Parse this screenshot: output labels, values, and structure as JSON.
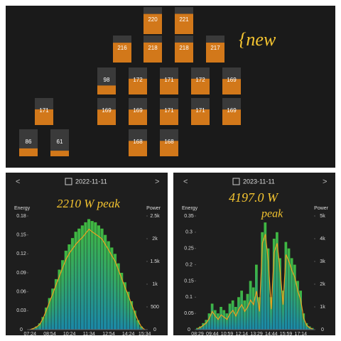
{
  "panel_rows": [
    [
      220,
      221
    ],
    [
      216,
      218,
      218,
      217
    ],
    [
      98,
      172,
      171,
      172,
      169
    ],
    [
      171,
      169,
      169,
      171,
      171,
      169
    ],
    [
      86,
      61,
      168,
      168
    ]
  ],
  "annotations": {
    "new": "{new",
    "peak_2022": "2210 W peak",
    "peak_2023_value": "4197.0 W",
    "peak_2023_word": "peak"
  },
  "chart_data": [
    {
      "type": "bar",
      "date": "2022-11-11",
      "prev": "<",
      "next": ">",
      "y_label": "Energy",
      "y2_label": "Power",
      "categories": [
        "07:24",
        null,
        null,
        null,
        null,
        null,
        "08:54",
        null,
        null,
        null,
        null,
        null,
        "10:24",
        null,
        null,
        null,
        null,
        null,
        "11:34",
        null,
        null,
        null,
        null,
        null,
        "12:54",
        null,
        null,
        null,
        null,
        null,
        "14:24",
        null,
        null,
        null,
        null,
        "15:34"
      ],
      "series": [
        {
          "name": "Energy",
          "color": "#3cb043",
          "values": [
            0,
            0.002,
            0.005,
            0.01,
            0.02,
            0.035,
            0.05,
            0.065,
            0.08,
            0.095,
            0.11,
            0.125,
            0.135,
            0.145,
            0.155,
            0.16,
            0.165,
            0.17,
            0.175,
            0.172,
            0.17,
            0.165,
            0.16,
            0.15,
            0.14,
            0.13,
            0.12,
            0.105,
            0.09,
            0.075,
            0.06,
            0.045,
            0.03,
            0.015,
            0.005,
            0
          ]
        },
        {
          "name": "Power",
          "color": "#f0a020",
          "axis": "y2",
          "values": [
            0,
            25,
            60,
            120,
            250,
            430,
            620,
            800,
            1000,
            1180,
            1370,
            1550,
            1680,
            1780,
            1880,
            1960,
            2030,
            2120,
            2210,
            2150,
            2100,
            2050,
            1990,
            1870,
            1750,
            1620,
            1500,
            1310,
            1120,
            930,
            750,
            560,
            370,
            190,
            60,
            0
          ]
        }
      ],
      "ylim": [
        0,
        0.18
      ],
      "yticks": [
        0,
        0.03,
        0.06,
        0.09,
        0.12,
        0.15,
        0.18
      ],
      "y2lim": [
        0,
        2500
      ],
      "y2ticks": [
        0,
        500,
        {
          "value": 1000,
          "label": "1k"
        },
        {
          "value": 1500,
          "label": "1.5k"
        },
        {
          "value": 2000,
          "label": "2k"
        },
        {
          "value": 2500,
          "label": "2.5k"
        }
      ]
    },
    {
      "type": "bar",
      "date": "2023-11-11",
      "prev": "<",
      "next": ">",
      "y_label": "Energy",
      "y2_label": "Power",
      "categories": [
        "08:29",
        null,
        null,
        null,
        null,
        "09:44",
        null,
        null,
        null,
        null,
        "10:59",
        null,
        null,
        null,
        null,
        "12:14",
        null,
        null,
        null,
        null,
        "13:29",
        null,
        null,
        null,
        null,
        "14:44",
        null,
        null,
        null,
        null,
        "15:59",
        null,
        null,
        null,
        null,
        "17:14",
        null,
        null,
        null,
        null
      ],
      "series": [
        {
          "name": "Energy",
          "color": "#3cb043",
          "values": [
            0.005,
            0.01,
            0.02,
            0.03,
            0.05,
            0.08,
            0.06,
            0.05,
            0.07,
            0.06,
            0.05,
            0.08,
            0.09,
            0.07,
            0.1,
            0.12,
            0.09,
            0.11,
            0.15,
            0.13,
            0.2,
            0.1,
            0.3,
            0.33,
            0.25,
            0.1,
            0.28,
            0.3,
            0.22,
            0.12,
            0.27,
            0.25,
            0.22,
            0.2,
            0.15,
            0.12,
            0.05,
            0.02,
            0.01,
            0.005
          ]
        },
        {
          "name": "Power",
          "color": "#f0a020",
          "axis": "y2",
          "values": [
            50,
            100,
            200,
            300,
            500,
            800,
            600,
            450,
            650,
            550,
            450,
            700,
            850,
            600,
            900,
            1100,
            800,
            1000,
            1300,
            1100,
            1700,
            800,
            3800,
            4197,
            3000,
            900,
            3400,
            3800,
            2600,
            1100,
            3300,
            3000,
            2600,
            2300,
            1700,
            1300,
            500,
            200,
            80,
            30
          ]
        }
      ],
      "ylim": [
        0,
        0.35
      ],
      "yticks": [
        0,
        0.05,
        0.1,
        0.15,
        0.2,
        0.25,
        0.3,
        0.35
      ],
      "y2lim": [
        0,
        5000
      ],
      "y2ticks": [
        0,
        {
          "value": 1000,
          "label": "1k"
        },
        {
          "value": 2000,
          "label": "2k"
        },
        {
          "value": 3000,
          "label": "3k"
        },
        {
          "value": 4000,
          "label": "4k"
        },
        {
          "value": 5000,
          "label": "5k"
        }
      ]
    }
  ]
}
